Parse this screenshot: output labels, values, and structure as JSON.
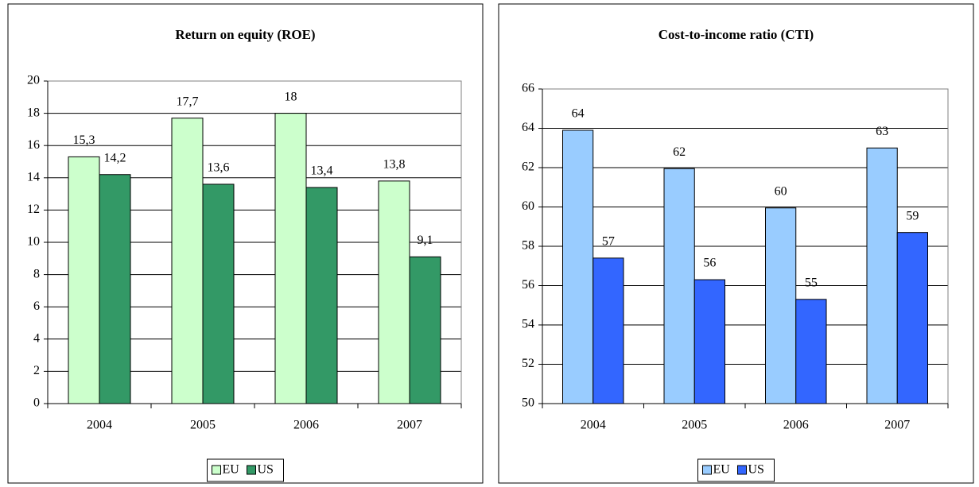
{
  "chart_data": [
    {
      "type": "bar",
      "title": "Return on equity (ROE)",
      "categories": [
        "2004",
        "2005",
        "2006",
        "2007"
      ],
      "series": [
        {
          "name": "EU",
          "color": "#ccffcc",
          "values": [
            15.3,
            17.7,
            18,
            13.8
          ],
          "value_labels": [
            "15,3",
            "17,7",
            "18",
            "13,8"
          ]
        },
        {
          "name": "US",
          "color": "#339966",
          "values": [
            14.2,
            13.6,
            13.4,
            9.1
          ],
          "value_labels": [
            "14,2",
            "13,6",
            "13,4",
            "9,1"
          ]
        }
      ],
      "ylim": [
        0,
        20
      ],
      "yticks": [
        0,
        2,
        4,
        6,
        8,
        10,
        12,
        14,
        16,
        18,
        20
      ],
      "grid": true,
      "legend": "bottom"
    },
    {
      "type": "bar",
      "title": "Cost-to-income ratio (CTI)",
      "categories": [
        "2004",
        "2005",
        "2006",
        "2007"
      ],
      "series": [
        {
          "name": "EU",
          "color": "#99ccff",
          "values": [
            63.9,
            61.95,
            59.95,
            63
          ],
          "value_labels": [
            "64",
            "62",
            "60",
            "63"
          ]
        },
        {
          "name": "US",
          "color": "#3366ff",
          "values": [
            57.4,
            56.3,
            55.3,
            58.7
          ],
          "value_labels": [
            "57",
            "56",
            "55",
            "59"
          ]
        }
      ],
      "ylim": [
        50,
        66
      ],
      "yticks": [
        50,
        52,
        54,
        56,
        58,
        60,
        62,
        64,
        66
      ],
      "grid": true,
      "legend": "bottom"
    }
  ]
}
